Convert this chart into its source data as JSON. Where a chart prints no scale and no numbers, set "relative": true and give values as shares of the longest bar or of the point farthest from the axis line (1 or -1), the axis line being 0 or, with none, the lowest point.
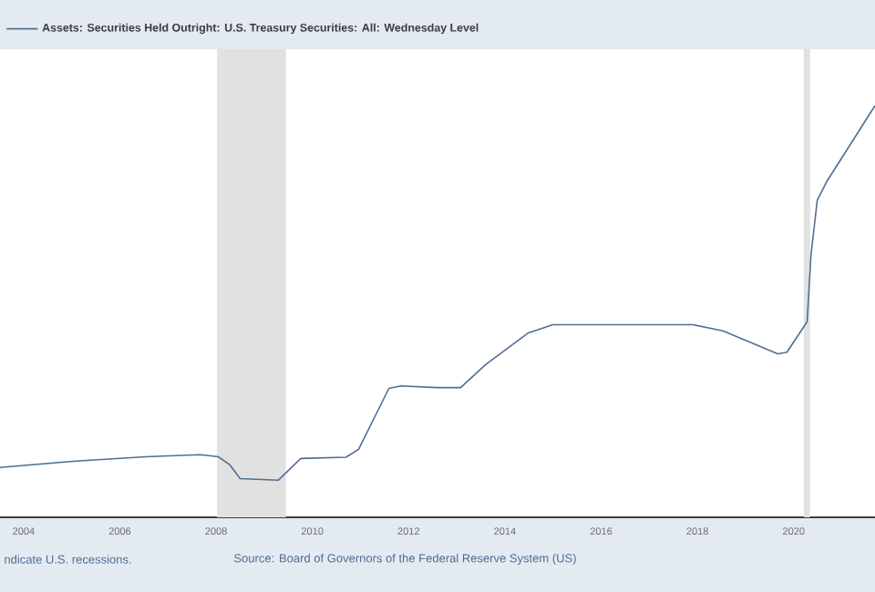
{
  "chart_data": {
    "type": "line",
    "relative": true,
    "legend": "top left",
    "line_style": "solid",
    "marker": "none",
    "x": [
      2003.51,
      2005.02,
      2006.54,
      2007.67,
      2008.05,
      2008.28,
      2008.5,
      2009.29,
      2009.76,
      2010.7,
      2010.96,
      2011.59,
      2011.84,
      2012.6,
      2013.08,
      2013.61,
      2014.49,
      2015.0,
      2017.9,
      2018.53,
      2019.67,
      2019.86,
      2020.28,
      2020.36,
      2020.49,
      2020.68,
      2021.69
    ],
    "xlim": [
      2003.51,
      2021.69
    ],
    "xticks": [
      2004,
      2006,
      2008,
      2010,
      2012,
      2014,
      2016,
      2018,
      2020
    ],
    "series": [
      {
        "name": "Assets: Securities Held Outright: U.S. Treasury Securities: All: Wednesday Level",
        "color": "#4f6f91",
        "values": [
          0.121,
          0.136,
          0.147,
          0.152,
          0.147,
          0.128,
          0.094,
          0.09,
          0.143,
          0.146,
          0.165,
          0.313,
          0.319,
          0.315,
          0.315,
          0.372,
          0.448,
          0.468,
          0.468,
          0.453,
          0.397,
          0.401,
          0.475,
          0.637,
          0.77,
          0.814,
          1
        ]
      }
    ],
    "bands": [
      {
        "axis": "x",
        "from": 2008.02,
        "to": 2009.45,
        "color": "#e1e1e1"
      },
      {
        "axis": "x",
        "from": 2020.21,
        "to": 2020.34,
        "color": "#e1e1e1"
      }
    ],
    "annotations": [
      "ndicate U.S. recessions.",
      "Source: Board of Governors of the Federal Reserve System (US)"
    ]
  }
}
